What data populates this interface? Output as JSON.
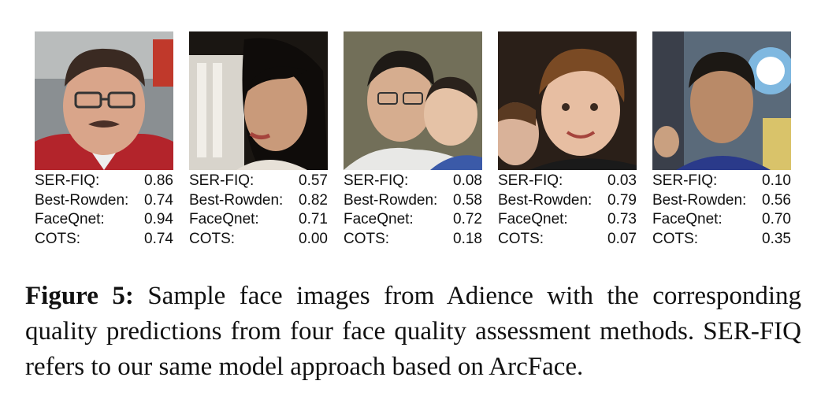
{
  "figure": {
    "label": "Figure 5:",
    "text": "Sample face images from Adience with the corresponding quality predictions from four face quality assessment methods. SER-FIQ refers to our same model approach based on ArcFace."
  },
  "panels": [
    {
      "scores": [
        {
          "method": "SER-FIQ:",
          "value": "0.86"
        },
        {
          "method": "Best-Rowden:",
          "value": "0.74"
        },
        {
          "method": "FaceQnet:",
          "value": "0.94"
        },
        {
          "method": "COTS:",
          "value": "0.74"
        }
      ]
    },
    {
      "scores": [
        {
          "method": "SER-FIQ:",
          "value": "0.57"
        },
        {
          "method": "Best-Rowden:",
          "value": "0.82"
        },
        {
          "method": "FaceQnet:",
          "value": "0.71"
        },
        {
          "method": "COTS:",
          "value": "0.00"
        }
      ]
    },
    {
      "scores": [
        {
          "method": "SER-FIQ:",
          "value": "0.08"
        },
        {
          "method": "Best-Rowden:",
          "value": "0.58"
        },
        {
          "method": "FaceQnet:",
          "value": "0.72"
        },
        {
          "method": "COTS:",
          "value": "0.18"
        }
      ]
    },
    {
      "scores": [
        {
          "method": "SER-FIQ:",
          "value": "0.03"
        },
        {
          "method": "Best-Rowden:",
          "value": "0.79"
        },
        {
          "method": "FaceQnet:",
          "value": "0.73"
        },
        {
          "method": "COTS:",
          "value": "0.07"
        }
      ]
    },
    {
      "scores": [
        {
          "method": "SER-FIQ:",
          "value": "0.10"
        },
        {
          "method": "Best-Rowden:",
          "value": "0.56"
        },
        {
          "method": "FaceQnet:",
          "value": "0.70"
        },
        {
          "method": "COTS:",
          "value": "0.35"
        }
      ]
    }
  ]
}
